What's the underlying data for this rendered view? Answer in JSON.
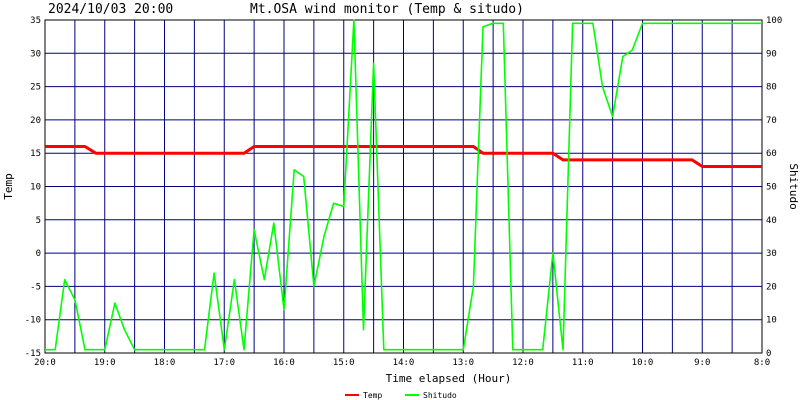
{
  "header": {
    "timestamp": "2024/10/03 20:00",
    "title": "Mt.OSA wind monitor (Temp & situdo)"
  },
  "chart_data": {
    "type": "line",
    "xlabel": "Time elapsed (Hour)",
    "ylabel_left": "Temp",
    "ylabel_right": "Shitudo",
    "x_direction": "hours before 20:00 (20:00 at left, 8:00 at right)",
    "xlim": [
      0,
      12
    ],
    "ylim_left": [
      -15,
      35
    ],
    "ylim_right": [
      0,
      100
    ],
    "x_ticks": [
      {
        "x": 0,
        "label": "20:0"
      },
      {
        "x": 1,
        "label": "19:0"
      },
      {
        "x": 2,
        "label": "18:0"
      },
      {
        "x": 3,
        "label": "17:0"
      },
      {
        "x": 4,
        "label": "16:0"
      },
      {
        "x": 5,
        "label": "15:0"
      },
      {
        "x": 6,
        "label": "14:0"
      },
      {
        "x": 7,
        "label": "13:0"
      },
      {
        "x": 8,
        "label": "12:0"
      },
      {
        "x": 9,
        "label": "11:0"
      },
      {
        "x": 10,
        "label": "10:0"
      },
      {
        "x": 11,
        "label": "9:0"
      },
      {
        "x": 12,
        "label": "8:0"
      }
    ],
    "y_ticks_left": [
      "35",
      "30",
      "25",
      "20",
      "15",
      "10",
      "5",
      "0",
      "-5",
      "-10",
      "-15"
    ],
    "y_ticks_right": [
      "100",
      "90",
      "80",
      "70",
      "60",
      "50",
      "40",
      "30",
      "20",
      "10",
      "0"
    ],
    "grid": true,
    "legend_position": "bottom-center",
    "series": [
      {
        "name": "Temp",
        "axis": "left",
        "color": "#ff0000",
        "x": [
          0,
          0.67,
          0.85,
          3.33,
          3.5,
          7.17,
          7.33,
          8.5,
          8.67,
          10.67,
          10.83,
          11,
          12
        ],
        "y": [
          16,
          16,
          15,
          15,
          16,
          16,
          15,
          15,
          14,
          14,
          14,
          13,
          13
        ]
      },
      {
        "name": "Shitudo",
        "axis": "right",
        "color": "#00ff00",
        "x": [
          0,
          0.17,
          0.33,
          0.5,
          0.67,
          0.83,
          1,
          1.17,
          1.33,
          1.5,
          1.67,
          2,
          2.33,
          2.67,
          2.83,
          3,
          3.17,
          3.33,
          3.5,
          3.67,
          3.83,
          4,
          4.17,
          4.33,
          4.5,
          4.67,
          4.83,
          5,
          5.17,
          5.33,
          5.5,
          5.67,
          5.83,
          6,
          6.5,
          7,
          7.17,
          7.33,
          7.5,
          7.67,
          7.83,
          8,
          8.17,
          8.33,
          8.5,
          8.67,
          8.83,
          9,
          9.17,
          9.33,
          9.5,
          9.67,
          9.83,
          10,
          10.17,
          11,
          12
        ],
        "y": [
          1,
          1,
          22,
          16,
          1,
          1,
          1,
          15,
          7,
          1,
          1,
          1,
          1,
          1,
          24,
          1,
          22,
          1,
          37,
          22,
          39,
          13,
          55,
          53,
          20,
          35,
          45,
          44,
          100,
          7,
          87,
          1,
          1,
          1,
          1,
          1,
          20,
          98,
          99,
          99,
          1,
          1,
          1,
          1,
          30,
          1,
          99,
          99,
          99,
          80,
          71,
          89,
          91,
          99,
          99,
          99,
          99
        ]
      }
    ]
  }
}
